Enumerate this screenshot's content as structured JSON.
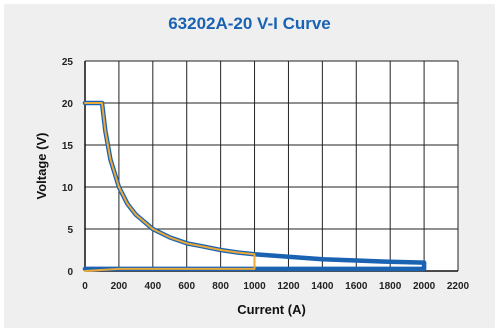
{
  "chart_data": {
    "type": "line",
    "title": "63202A-20 V-I Curve",
    "xlabel": "Current (A)",
    "ylabel": "Voltage (V)",
    "xlim": [
      0,
      2200
    ],
    "ylim": [
      0,
      25
    ],
    "xticks": [
      0,
      200,
      400,
      600,
      800,
      1000,
      1200,
      1400,
      1600,
      1800,
      2000,
      2200
    ],
    "yticks": [
      0,
      5,
      10,
      15,
      20,
      25
    ],
    "grid": true,
    "legend": "none",
    "series": [
      {
        "color": "#1a63b3",
        "x": [
          0,
          100,
          120,
          150,
          200,
          250,
          300,
          400,
          500,
          600,
          700,
          800,
          900,
          1000,
          1200,
          1400,
          1600,
          1800,
          2000,
          2000,
          0
        ],
        "y": [
          20,
          20,
          16.7,
          13.3,
          10,
          8,
          6.7,
          5,
          4,
          3.3,
          2.9,
          2.5,
          2.2,
          2,
          1.7,
          1.4,
          1.25,
          1.1,
          1,
          0.25,
          0.25
        ]
      },
      {
        "color": "#e8a93a",
        "x": [
          0,
          100,
          120,
          150,
          200,
          250,
          300,
          400,
          500,
          600,
          700,
          800,
          900,
          1000,
          1000,
          200,
          0
        ],
        "y": [
          20,
          20,
          16.7,
          13.3,
          10,
          8,
          6.7,
          5,
          4,
          3.3,
          2.9,
          2.5,
          2.2,
          2,
          0.25,
          0.25,
          0
        ]
      }
    ]
  }
}
